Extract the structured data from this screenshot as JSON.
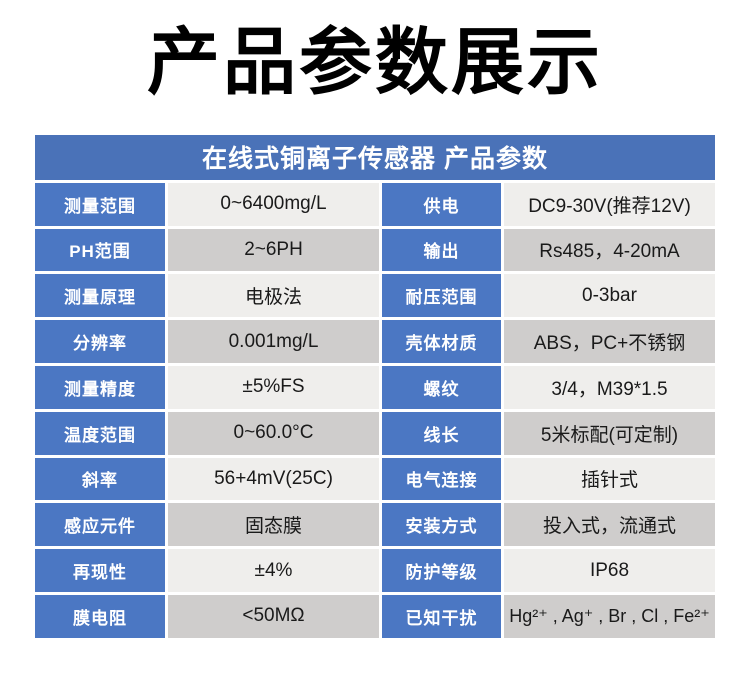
{
  "page": {
    "title": "产品参数展示"
  },
  "table": {
    "header": "在线式铜离子传感器 产品参数",
    "rows": [
      {
        "label_left": "测量范围",
        "value_left": "0~6400mg/L",
        "label_right": "供电",
        "value_right": "DC9-30V(推荐12V)"
      },
      {
        "label_left": "PH范围",
        "value_left": "2~6PH",
        "label_right": "输出",
        "value_right": "Rs485，4-20mA"
      },
      {
        "label_left": "测量原理",
        "value_left": "电极法",
        "label_right": "耐压范围",
        "value_right": "0-3bar"
      },
      {
        "label_left": "分辨率",
        "value_left": "0.001mg/L",
        "label_right": "壳体材质",
        "value_right": "ABS，PC+不锈钢"
      },
      {
        "label_left": "测量精度",
        "value_left": "±5%FS",
        "label_right": "螺纹",
        "value_right": "3/4，M39*1.5"
      },
      {
        "label_left": "温度范围",
        "value_left": "0~60.0°C",
        "label_right": "线长",
        "value_right": "5米标配(可定制)"
      },
      {
        "label_left": "斜率",
        "value_left": "56+4mV(25C)",
        "label_right": "电气连接",
        "value_right": "插针式"
      },
      {
        "label_left": "感应元件",
        "value_left": "固态膜",
        "label_right": "安装方式",
        "value_right": "投入式，流通式"
      },
      {
        "label_left": "再现性",
        "value_left": "±4%",
        "label_right": "防护等级",
        "value_right": "IP68"
      },
      {
        "label_left": "膜电阻",
        "value_left": "<50MΩ",
        "label_right": "已知干扰",
        "value_right": "Hg²⁺ , Ag⁺ , Br , Cl , Fe²⁺"
      }
    ]
  },
  "colors": {
    "header_blue": "#4a72b8",
    "label_blue": "#4b77c3",
    "row_light": "#efeeec",
    "row_dark": "#cfcdcc",
    "title_black": "#000000",
    "value_ink": "#1a1a1a",
    "page_bg": "#ffffff"
  }
}
